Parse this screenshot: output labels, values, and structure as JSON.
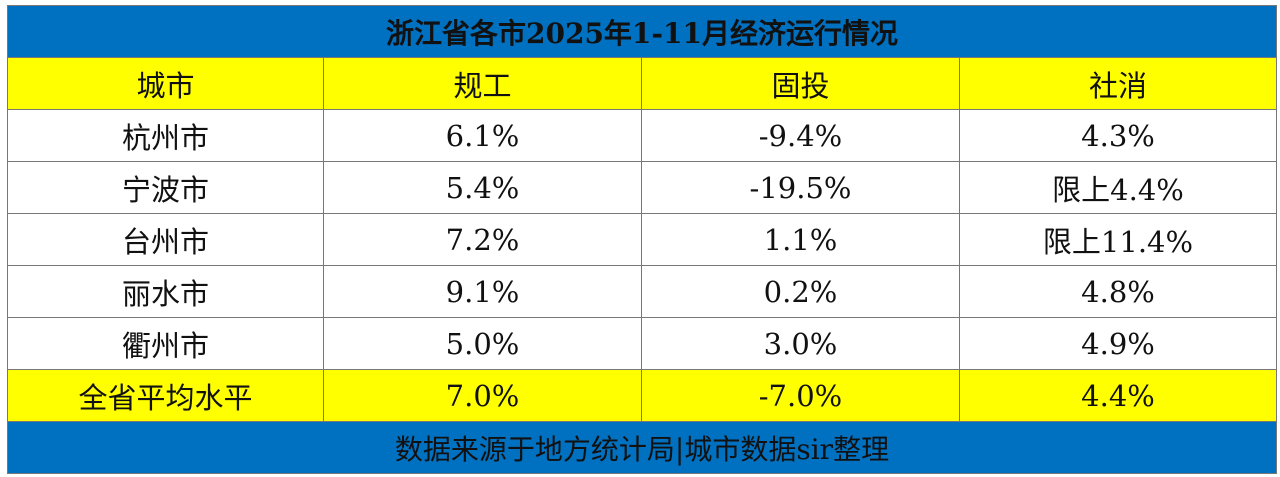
{
  "title": "浙江省各市2025年1-11月经济运行情况",
  "headers": [
    "城市",
    "规工",
    "固投",
    "社消"
  ],
  "rows": [
    {
      "city": "杭州市",
      "industry": "6.1%",
      "investment": "-9.4%",
      "retail": "4.3%"
    },
    {
      "city": "宁波市",
      "industry": "5.4%",
      "investment": "-19.5%",
      "retail": "限上4.4%"
    },
    {
      "city": "台州市",
      "industry": "7.2%",
      "investment": "1.1%",
      "retail": "限上11.4%"
    },
    {
      "city": "丽水市",
      "industry": "9.1%",
      "investment": "0.2%",
      "retail": "4.8%"
    },
    {
      "city": "衢州市",
      "industry": "5.0%",
      "investment": "3.0%",
      "retail": "4.9%"
    }
  ],
  "average": {
    "city": "全省平均水平",
    "industry": "7.0%",
    "investment": "-7.0%",
    "retail": "4.4%"
  },
  "footer": "数据来源于地方统计局|城市数据sir整理",
  "colors": {
    "title_bg": "#0070c0",
    "highlight_bg": "#ffff00"
  }
}
